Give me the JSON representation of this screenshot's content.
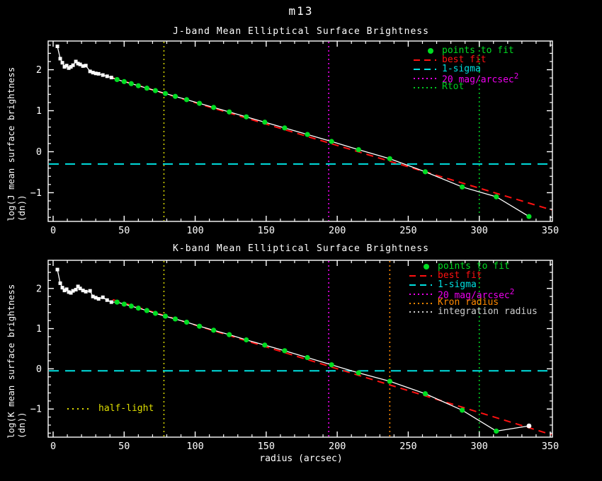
{
  "title": "m13",
  "xlabel": "radius (arcsec)",
  "colors": {
    "background": "#000000",
    "axis": "#ffffff",
    "profile": "#ffffff",
    "points_to_fit": "#00dd22",
    "best_fit": "#ff1111",
    "sigma": "#00e0e0",
    "mag20": "#ee00ee",
    "rtot": "#00cc22",
    "kron": "#ff8800",
    "integration": "#cfcfcf",
    "half_light": "#dddd00",
    "half_light_line": "#cccc00"
  },
  "chart_data": [
    {
      "type": "line",
      "band": "J",
      "title": "J-band Mean Elliptical Surface Brightness",
      "ylabel": "log(J mean surface brightness (dn))",
      "xlim": [
        -3.5,
        351.5
      ],
      "ylim": [
        -1.7,
        2.7
      ],
      "x_ticks": [
        0,
        50,
        100,
        150,
        200,
        250,
        300,
        350
      ],
      "y_ticks": [
        -1,
        0,
        1,
        2
      ],
      "x_minor_step": 10,
      "y_minor_step": 0.2,
      "grid": false,
      "raw_profile": {
        "name": "measured profile",
        "x": [
          3,
          5,
          6.5,
          8,
          9.5,
          11,
          12.5,
          14,
          16,
          17.5,
          19,
          21,
          23,
          26,
          28,
          30,
          32,
          35,
          38,
          41
        ],
        "y": [
          2.57,
          2.27,
          2.17,
          2.07,
          2.1,
          2.04,
          2.07,
          2.11,
          2.2,
          2.15,
          2.13,
          2.09,
          2.1,
          1.96,
          1.93,
          1.91,
          1.9,
          1.87,
          1.84,
          1.81
        ]
      },
      "points_to_fit": {
        "name": "points to fit",
        "x": [
          45,
          50,
          55,
          60,
          66,
          72,
          79,
          86,
          94,
          103,
          113,
          124,
          136,
          149,
          163,
          179,
          196,
          215,
          237,
          262,
          288,
          312,
          335
        ],
        "y": [
          1.76,
          1.71,
          1.66,
          1.61,
          1.55,
          1.49,
          1.42,
          1.35,
          1.27,
          1.18,
          1.08,
          0.97,
          0.85,
          0.72,
          0.58,
          0.42,
          0.25,
          0.05,
          -0.17,
          -0.49,
          -0.86,
          -1.1,
          -1.58
        ]
      },
      "best_fit": {
        "name": "best fit",
        "x": [
          42,
          351
        ],
        "y": [
          1.8,
          -1.42
        ]
      },
      "sigma_line": -0.3,
      "vlines": [
        {
          "label": "half-light",
          "x": 78,
          "color": "#cccc00"
        },
        {
          "label": "20 mag/arcsec2",
          "x": 194,
          "color": "#ee00ee"
        },
        {
          "label": "Rtot",
          "x": 300,
          "color": "#00cc22"
        }
      ],
      "legend": [
        {
          "label": "points to fit",
          "color": "#00dd22",
          "marker": "dot"
        },
        {
          "label": "best fit",
          "color": "#ff1111",
          "marker": "dash"
        },
        {
          "label": "1-sigma",
          "color": "#00e0e0",
          "marker": "dash"
        },
        {
          "label": "20 mag/arcsec",
          "sup": "2",
          "color": "#ee00ee",
          "marker": "dots"
        },
        {
          "label": "Rtot",
          "color": "#00cc22",
          "marker": "dots"
        }
      ]
    },
    {
      "type": "line",
      "band": "K",
      "title": "K-band Mean Elliptical Surface Brightness",
      "ylabel": "log(K mean surface brightness (dn))",
      "xlim": [
        -3.5,
        351.5
      ],
      "ylim": [
        -1.7,
        2.7
      ],
      "x_ticks": [
        0,
        50,
        100,
        150,
        200,
        250,
        300,
        350
      ],
      "y_ticks": [
        -1,
        0,
        1,
        2
      ],
      "x_minor_step": 10,
      "y_minor_step": 0.2,
      "grid": false,
      "raw_profile": {
        "name": "measured profile",
        "x": [
          3,
          5,
          6.5,
          8,
          9.5,
          11,
          12.5,
          14,
          16,
          17.5,
          19,
          21,
          23,
          26,
          28,
          30,
          32,
          35,
          38,
          41
        ],
        "y": [
          2.47,
          2.13,
          2.02,
          1.95,
          1.98,
          1.91,
          1.89,
          1.94,
          1.97,
          2.05,
          2.0,
          1.95,
          1.92,
          1.94,
          1.8,
          1.77,
          1.74,
          1.78,
          1.71,
          1.66
        ]
      },
      "points_to_fit": {
        "name": "points to fit",
        "x": [
          45,
          50,
          55,
          60,
          66,
          72,
          79,
          86,
          94,
          103,
          113,
          124,
          136,
          149,
          163,
          179,
          196,
          215,
          237,
          262,
          288,
          312
        ],
        "y": [
          1.66,
          1.61,
          1.56,
          1.51,
          1.45,
          1.38,
          1.31,
          1.24,
          1.16,
          1.06,
          0.96,
          0.85,
          0.72,
          0.59,
          0.45,
          0.28,
          0.1,
          -0.1,
          -0.31,
          -0.62,
          -1.03,
          -1.55
        ]
      },
      "trailing_point": {
        "name": "last measured point",
        "x": 335,
        "y": -1.42
      },
      "best_fit": {
        "name": "best fit",
        "x": [
          42,
          351
        ],
        "y": [
          1.72,
          -1.64
        ]
      },
      "sigma_line": -0.05,
      "vlines": [
        {
          "label": "half-light",
          "x": 78,
          "color": "#cccc00"
        },
        {
          "label": "20 mag/arcsec2",
          "x": 194,
          "color": "#ee00ee"
        },
        {
          "label": "Kron radius",
          "x": 237,
          "color": "#ff8800"
        },
        {
          "label": "Rtot",
          "x": 300,
          "color": "#00cc22"
        }
      ],
      "legend": [
        {
          "label": "points to fit",
          "color": "#00dd22",
          "marker": "dot"
        },
        {
          "label": "best fit",
          "color": "#ff1111",
          "marker": "dash"
        },
        {
          "label": "1-sigma",
          "color": "#00e0e0",
          "marker": "dash"
        },
        {
          "label": "20 mag/arcsec",
          "sup": "2",
          "color": "#ee00ee",
          "marker": "dots"
        },
        {
          "label": "Kron radius",
          "color": "#ff8800",
          "marker": "dots"
        },
        {
          "label": "integration radius",
          "color": "#cfcfcf",
          "marker": "dots"
        }
      ],
      "annotation": {
        "label": "half-light",
        "color": "#dddd00"
      }
    }
  ]
}
